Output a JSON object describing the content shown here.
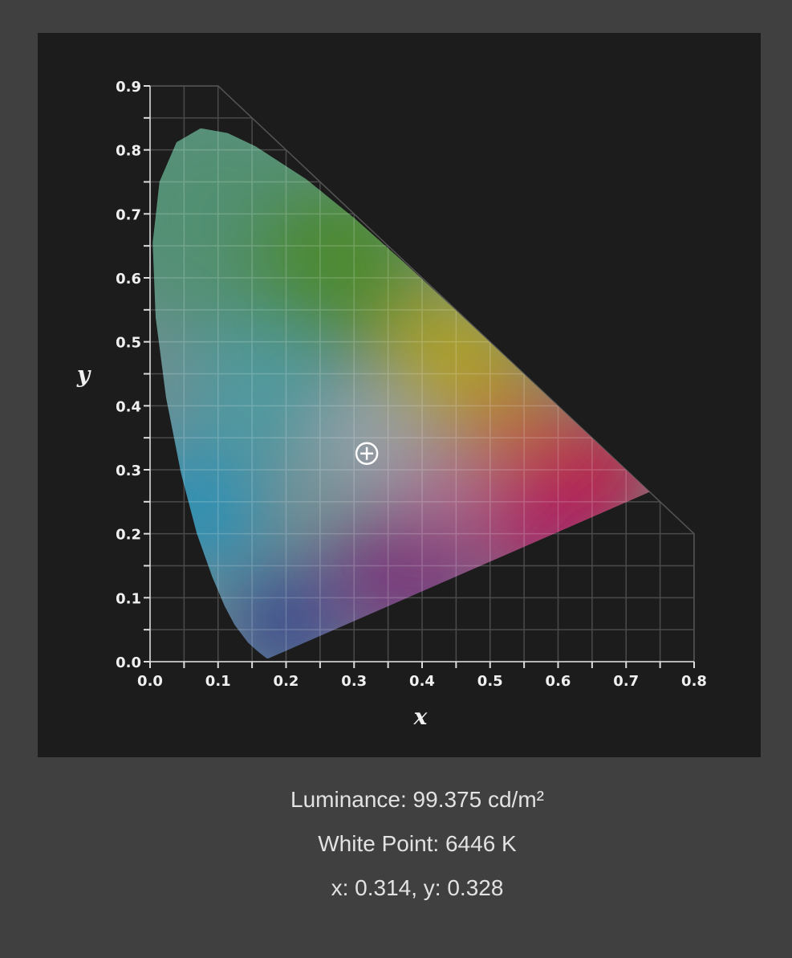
{
  "chart_data": {
    "type": "scatter",
    "title": "",
    "xlabel": "x",
    "ylabel": "y",
    "xlim": [
      0.0,
      0.8
    ],
    "ylim": [
      0.0,
      0.9
    ],
    "x_ticks": [
      "0.0",
      "0.1",
      "0.2",
      "0.3",
      "0.4",
      "0.5",
      "0.6",
      "0.7",
      "0.8"
    ],
    "y_ticks": [
      "0.0",
      "0.1",
      "0.2",
      "0.3",
      "0.4",
      "0.5",
      "0.6",
      "0.7",
      "0.8",
      "0.9"
    ],
    "grid": true,
    "grid_step": 0.05,
    "spectral_locus": [
      [
        0.1741,
        0.005
      ],
      [
        0.1714,
        0.0051
      ],
      [
        0.1644,
        0.0109
      ],
      [
        0.1566,
        0.0177
      ],
      [
        0.144,
        0.0297
      ],
      [
        0.1241,
        0.0578
      ],
      [
        0.1096,
        0.0868
      ],
      [
        0.0913,
        0.1327
      ],
      [
        0.0687,
        0.2007
      ],
      [
        0.0454,
        0.295
      ],
      [
        0.0235,
        0.4127
      ],
      [
        0.0082,
        0.5384
      ],
      [
        0.0039,
        0.6548
      ],
      [
        0.0139,
        0.7502
      ],
      [
        0.0389,
        0.812
      ],
      [
        0.0743,
        0.8338
      ],
      [
        0.1142,
        0.8262
      ],
      [
        0.1547,
        0.8059
      ],
      [
        0.2296,
        0.7543
      ],
      [
        0.3016,
        0.6923
      ],
      [
        0.3731,
        0.6245
      ],
      [
        0.4441,
        0.5547
      ],
      [
        0.5125,
        0.4866
      ],
      [
        0.5752,
        0.4242
      ],
      [
        0.627,
        0.3725
      ],
      [
        0.6915,
        0.3083
      ],
      [
        0.719,
        0.2809
      ],
      [
        0.7347,
        0.2653
      ]
    ],
    "points": [
      {
        "x": 0.314,
        "y": 0.328,
        "marker": "crosshair-circle"
      }
    ]
  },
  "info": {
    "luminance": "Luminance: 99.375 cd/m²",
    "white_point": "White Point: 6446 K",
    "coordinates": "x: 0.314, y: 0.328"
  },
  "colors": {
    "page_background": "#404040",
    "panel_background": "#1c1c1c",
    "grid": "#4a4a4a",
    "text": "#e2e2e2"
  }
}
